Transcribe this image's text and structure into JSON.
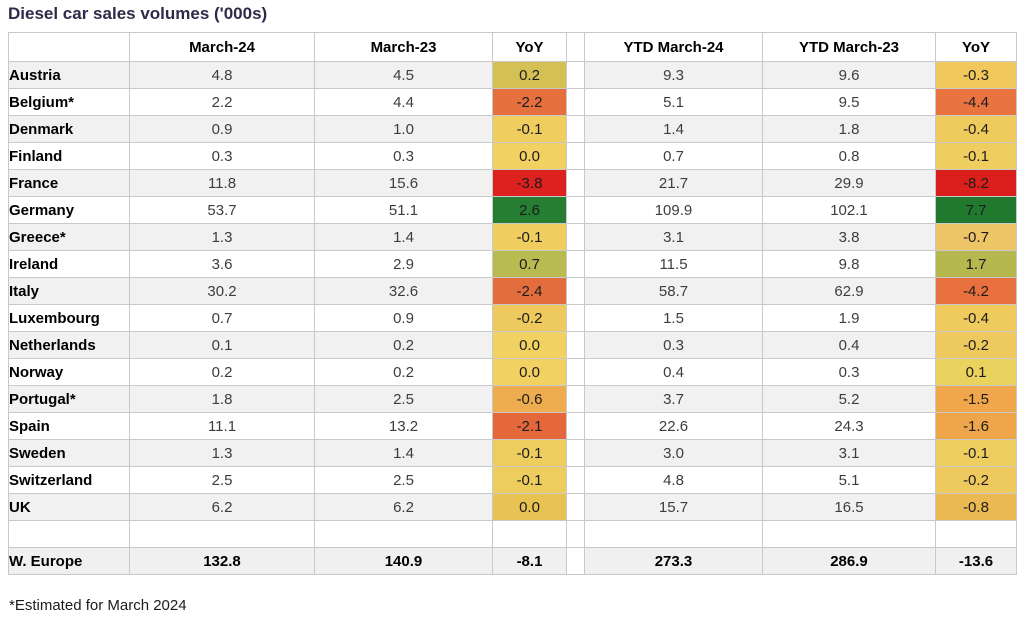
{
  "title": "Diesel car sales volumes ('000s)",
  "footnote": "*Estimated for March 2024",
  "colors": {
    "title_text": "#302a49",
    "stripe_bg": "#f1f1f1",
    "total_bg": "#f0f0f0",
    "grid_border": "#c9c9c9",
    "outer_border": "#9e9e9e",
    "negative_strong": "#dc211e",
    "positive_strong": "#20792f",
    "neutral_yellow": "#f0d161",
    "orange_mid": "#e5703d"
  },
  "chart_data": {
    "type": "table",
    "title": "Diesel car sales volumes ('000s)",
    "columns": [
      "",
      "March-24",
      "March-23",
      "YoY",
      "YTD March-24",
      "YTD March-23",
      "YoY"
    ],
    "rows": [
      {
        "label": "Austria",
        "values": [
          4.8,
          4.5,
          0.2,
          9.3,
          9.6,
          -0.3
        ],
        "yoy_colors": [
          "#d5c055",
          "#f0c85c"
        ]
      },
      {
        "label": "Belgium*",
        "values": [
          2.2,
          4.4,
          -2.2,
          5.1,
          9.5,
          -4.4
        ],
        "yoy_colors": [
          "#e5703d",
          "#e97440"
        ]
      },
      {
        "label": "Denmark",
        "values": [
          0.9,
          1.0,
          -0.1,
          1.4,
          1.8,
          -0.4
        ],
        "yoy_colors": [
          "#efce5f",
          "#efca5c"
        ]
      },
      {
        "label": "Finland",
        "values": [
          0.3,
          0.3,
          0.0,
          0.7,
          0.8,
          -0.1
        ],
        "yoy_colors": [
          "#f0d161",
          "#efce5f"
        ]
      },
      {
        "label": "France",
        "values": [
          11.8,
          15.6,
          -3.8,
          21.7,
          29.9,
          -8.2
        ],
        "yoy_colors": [
          "#dc211e",
          "#db1f1c"
        ]
      },
      {
        "label": "Germany",
        "values": [
          53.7,
          51.1,
          2.6,
          109.9,
          102.1,
          7.7
        ],
        "yoy_colors": [
          "#257e31",
          "#20792f"
        ]
      },
      {
        "label": "Greece*",
        "values": [
          1.3,
          1.4,
          -0.1,
          3.1,
          3.8,
          -0.7
        ],
        "yoy_colors": [
          "#efce5f",
          "#edc466"
        ]
      },
      {
        "label": "Ireland",
        "values": [
          3.6,
          2.9,
          0.7,
          11.5,
          9.8,
          1.7
        ],
        "yoy_colors": [
          "#b8bb50",
          "#b5b84e"
        ]
      },
      {
        "label": "Italy",
        "values": [
          30.2,
          32.6,
          -2.4,
          58.7,
          62.9,
          -4.2
        ],
        "yoy_colors": [
          "#e36d3c",
          "#e7703e"
        ]
      },
      {
        "label": "Luxembourg",
        "values": [
          0.7,
          0.9,
          -0.2,
          1.5,
          1.9,
          -0.4
        ],
        "yoy_colors": [
          "#eeca5e",
          "#efca5c"
        ]
      },
      {
        "label": "Netherlands",
        "values": [
          0.1,
          0.2,
          0.0,
          0.3,
          0.4,
          -0.2
        ],
        "yoy_colors": [
          "#f0d161",
          "#eeca5e"
        ]
      },
      {
        "label": "Norway",
        "values": [
          0.2,
          0.2,
          0.0,
          0.4,
          0.3,
          0.1
        ],
        "yoy_colors": [
          "#f0d161",
          "#ead25f"
        ]
      },
      {
        "label": "Portugal*",
        "values": [
          1.8,
          2.5,
          -0.6,
          3.7,
          5.2,
          -1.5
        ],
        "yoy_colors": [
          "#edad4e",
          "#f0a74b"
        ]
      },
      {
        "label": "Spain",
        "values": [
          11.1,
          13.2,
          -2.1,
          22.6,
          24.3,
          -1.6
        ],
        "yoy_colors": [
          "#e5683c",
          "#efa64a"
        ]
      },
      {
        "label": "Sweden",
        "values": [
          1.3,
          1.4,
          -0.1,
          3.0,
          3.1,
          -0.1
        ],
        "yoy_colors": [
          "#eecd5f",
          "#efce60"
        ]
      },
      {
        "label": "Switzerland",
        "values": [
          2.5,
          2.5,
          -0.1,
          4.8,
          5.1,
          -0.2
        ],
        "yoy_colors": [
          "#eecd5f",
          "#eec95d"
        ]
      },
      {
        "label": "UK",
        "values": [
          6.2,
          6.2,
          0.0,
          15.7,
          16.5,
          -0.8
        ],
        "yoy_colors": [
          "#e9c254",
          "#ecb852"
        ]
      }
    ],
    "total": {
      "label": "W. Europe",
      "values": [
        132.8,
        140.9,
        -8.1,
        273.3,
        286.9,
        -13.6
      ]
    },
    "footnote": "*Estimated for March 2024"
  }
}
